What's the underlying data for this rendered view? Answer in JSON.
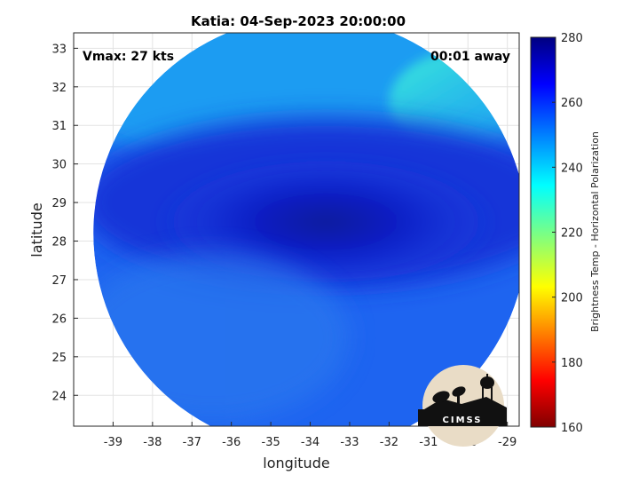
{
  "chart_data": {
    "type": "heatmap",
    "title": "Katia: 04-Sep-2023 20:00:00",
    "xlabel": "longitude",
    "ylabel": "latitude",
    "xlim": [
      -40.0,
      -28.7
    ],
    "ylim": [
      23.2,
      33.4
    ],
    "x_ticks": [
      -39,
      -38,
      -37,
      -36,
      -35,
      -34,
      -33,
      -32,
      -31,
      -30,
      -29
    ],
    "y_ticks": [
      24,
      25,
      26,
      27,
      28,
      29,
      30,
      31,
      32,
      33
    ],
    "x_tick_labels": [
      "-39",
      "-38",
      "-37",
      "-36",
      "-35",
      "-34",
      "-33",
      "-32",
      "-31",
      "-30",
      "-29"
    ],
    "y_tick_labels": [
      "24",
      "25",
      "26",
      "27",
      "28",
      "29",
      "30",
      "31",
      "32",
      "33"
    ],
    "grid": true,
    "annotations": {
      "vmax": "Vmax: 27 kts",
      "time_away": "00:01 away"
    },
    "colorbar": {
      "label": "Brightness Temp - Horizontal Polarization",
      "range": [
        160,
        280
      ],
      "ticks": [
        160,
        180,
        200,
        220,
        240,
        260,
        280
      ],
      "tick_labels": [
        "160",
        "180",
        "200",
        "220",
        "240",
        "260",
        "280"
      ],
      "colormap": "jet"
    },
    "swath": {
      "shape": "circle",
      "center": [
        -34.0,
        28.2
      ],
      "radius_deg": 5.5
    },
    "field_description_values": {
      "background_tb": 252,
      "core_tb": 272,
      "northeast_edge_tb": 240
    },
    "logo_text": "CIMSS"
  }
}
